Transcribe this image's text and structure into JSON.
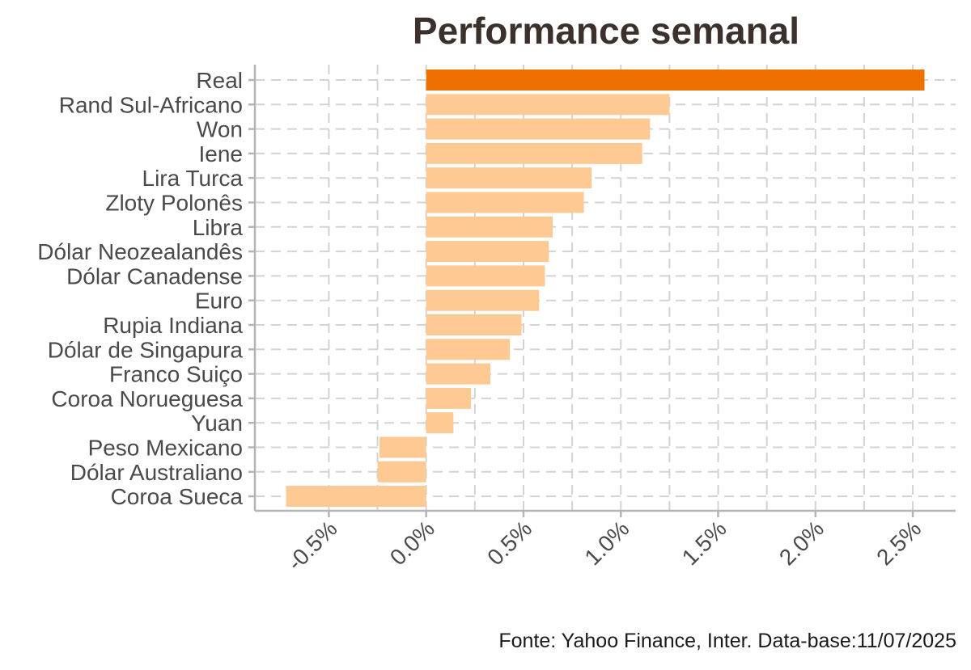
{
  "chart_data": {
    "type": "bar",
    "orientation": "horizontal",
    "title": "Performance semanal",
    "categories": [
      "Real",
      "Rand Sul-Africano",
      "Won",
      "Iene",
      "Lira Turca",
      "Zloty Polonês",
      "Libra",
      "Dólar Neozealandês",
      "Dólar Canadense",
      "Euro",
      "Rupia Indiana",
      "Dólar de Singapura",
      "Franco Suiço",
      "Coroa Norueguesa",
      "Yuan",
      "Peso Mexicano",
      "Dólar Australiano",
      "Coroa Sueca"
    ],
    "values": [
      2.56,
      1.25,
      1.15,
      1.11,
      0.85,
      0.81,
      0.65,
      0.63,
      0.61,
      0.58,
      0.49,
      0.43,
      0.33,
      0.23,
      0.14,
      -0.24,
      -0.25,
      -0.72
    ],
    "xlim": [
      -0.88,
      2.72
    ],
    "xticks": [
      -0.5,
      0.0,
      0.5,
      1.0,
      1.5,
      2.0,
      2.5
    ],
    "xtick_labels": [
      "-0.5%",
      "0.0%",
      "0.5%",
      "1.0%",
      "1.5%",
      "2.0%",
      "2.5%"
    ],
    "xlabel": "",
    "ylabel": "",
    "grid": true,
    "highlight_color": "#ee7100",
    "bar_color": "#ffc994",
    "highlight_category": "Real"
  },
  "source_note": "Fonte: Yahoo Finance, Inter. Data-base:11/07/2025"
}
